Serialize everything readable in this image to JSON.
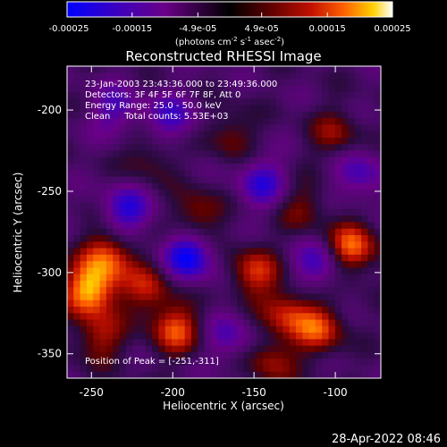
{
  "colorbar": {
    "ticks": [
      "-0.00025",
      "-0.00015",
      "-4.9e-05",
      "4.9e-05",
      "0.00015",
      "0.00025"
    ],
    "tick_values": [
      -0.00025,
      -0.00015,
      -4.9e-05,
      4.9e-05,
      0.00015,
      0.00025
    ],
    "range": [
      -0.00025,
      0.00025
    ],
    "units_parts": [
      "(photons cm",
      "-2",
      " s",
      "-1",
      " asec",
      "-2",
      ")"
    ],
    "colors": [
      "#0000ff",
      "#3a00c0",
      "#6a0088",
      "#000000",
      "#5a0000",
      "#c01000",
      "#ff6000",
      "#ffd000",
      "#ffffff"
    ]
  },
  "chart_data": {
    "type": "heatmap",
    "title": "Reconstructed RHESSI Image",
    "xlabel": "Heliocentric X (arcsec)",
    "ylabel": "Heliocentric Y (arcsec)",
    "xlim": [
      -265,
      -72
    ],
    "ylim": [
      -365,
      -173
    ],
    "xticks": [
      -250,
      -200,
      -150,
      -100
    ],
    "xtick_labels": [
      "-250",
      "-200",
      "-150",
      "-100"
    ],
    "yticks": [
      -200,
      -250,
      -300,
      -350
    ],
    "ytick_labels": [
      "-200",
      "-250",
      "-300",
      "-350"
    ],
    "annotations": [
      "23-Jan-2003 23:43:36.000 to 23:49:36.000",
      "Detectors: 3F 4F 5F 6F 7F 8F, Att 0",
      "Energy Range: 25.0 - 50.0 keV",
      "Clean     Total counts: 5.53E+03"
    ],
    "peak_label": "Position of Peak = [-251,-311]",
    "peak_position": [
      -251,
      -311
    ],
    "hot_spots": [
      {
        "x": -251,
        "y": -311,
        "value": 0.00025
      },
      {
        "x": -240,
        "y": -290,
        "value": 0.00018
      },
      {
        "x": -215,
        "y": -310,
        "value": 0.00013
      },
      {
        "x": -198,
        "y": -335,
        "value": 0.00017
      },
      {
        "x": -245,
        "y": -340,
        "value": 0.00012
      },
      {
        "x": -185,
        "y": -265,
        "value": 0.00012
      },
      {
        "x": -150,
        "y": -300,
        "value": 0.00015
      },
      {
        "x": -130,
        "y": -325,
        "value": 0.00014
      },
      {
        "x": -110,
        "y": -335,
        "value": 0.00016
      },
      {
        "x": -90,
        "y": -285,
        "value": 0.0002
      },
      {
        "x": -100,
        "y": -215,
        "value": 0.0001
      },
      {
        "x": -140,
        "y": -355,
        "value": 0.00011
      },
      {
        "x": -165,
        "y": -215,
        "value": 9e-05
      },
      {
        "x": -215,
        "y": -230,
        "value": 8e-05
      },
      {
        "x": -120,
        "y": -260,
        "value": 9e-05
      }
    ],
    "cold_spots": [
      {
        "x": -190,
        "y": -290,
        "value": -0.0002
      },
      {
        "x": -228,
        "y": -262,
        "value": -0.00015
      },
      {
        "x": -145,
        "y": -245,
        "value": -0.00014
      },
      {
        "x": -110,
        "y": -295,
        "value": -0.00013
      },
      {
        "x": -200,
        "y": -205,
        "value": -0.00012
      },
      {
        "x": -85,
        "y": -240,
        "value": -0.00012
      },
      {
        "x": -165,
        "y": -340,
        "value": -0.0001
      },
      {
        "x": -235,
        "y": -200,
        "value": -0.00011
      }
    ]
  },
  "footer": {
    "timestamp": "28-Apr-2022 08:46"
  }
}
